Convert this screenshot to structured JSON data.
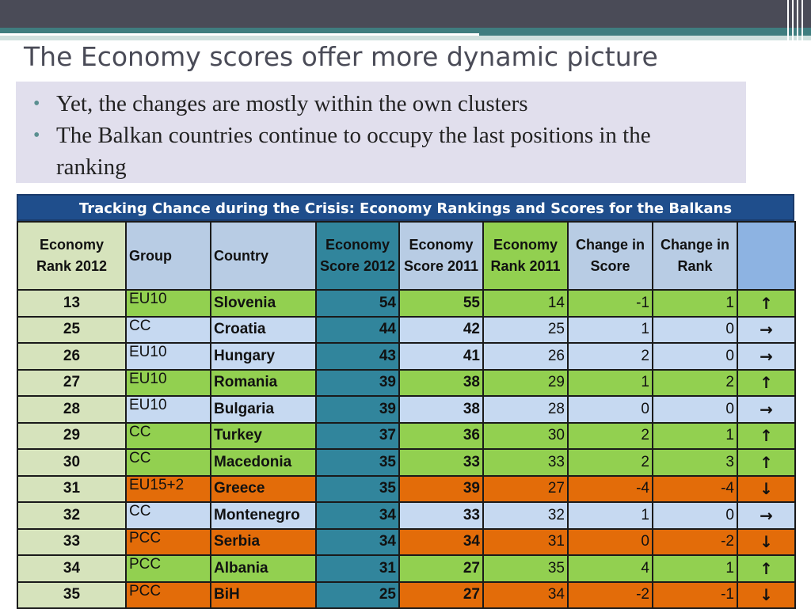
{
  "slide": {
    "title": "The Economy scores offer more dynamic picture",
    "bullets": [
      "Yet, the changes are mostly within the own clusters",
      "The Balkan countries continue to occupy the last positions in the ranking"
    ],
    "bullet_symbol": "•"
  },
  "table": {
    "title": "Tracking Chance during the Crisis: Economy Rankings and Scores for the Balkans",
    "headers": [
      "Economy Rank 2012",
      "Group",
      "Country",
      "Economy Score 2012",
      "Economy Score 2011",
      "Economy Rank 2011",
      "Change in Score",
      "Change in Rank",
      ""
    ],
    "rows": [
      {
        "rank2012": "13",
        "group": "EU10",
        "country": "Slovenia",
        "score2012": "54",
        "score2011": "55",
        "rank2011": "14",
        "change_score": "-1",
        "change_rank": "1",
        "trend": "up",
        "color": "green"
      },
      {
        "rank2012": "25",
        "group": "CC",
        "country": "Croatia",
        "score2012": "44",
        "score2011": "42",
        "rank2011": "25",
        "change_score": "1",
        "change_rank": "0",
        "trend": "flat",
        "color": "blue"
      },
      {
        "rank2012": "26",
        "group": "EU10",
        "country": "Hungary",
        "score2012": "43",
        "score2011": "41",
        "rank2011": "26",
        "change_score": "2",
        "change_rank": "0",
        "trend": "flat",
        "color": "blue"
      },
      {
        "rank2012": "27",
        "group": "EU10",
        "country": "Romania",
        "score2012": "39",
        "score2011": "38",
        "rank2011": "29",
        "change_score": "1",
        "change_rank": "2",
        "trend": "up",
        "color": "green"
      },
      {
        "rank2012": "28",
        "group": "EU10",
        "country": "Bulgaria",
        "score2012": "39",
        "score2011": "38",
        "rank2011": "28",
        "change_score": "0",
        "change_rank": "0",
        "trend": "flat",
        "color": "blue"
      },
      {
        "rank2012": "29",
        "group": "CC",
        "country": "Turkey",
        "score2012": "37",
        "score2011": "36",
        "rank2011": "30",
        "change_score": "2",
        "change_rank": "1",
        "trend": "up",
        "color": "green"
      },
      {
        "rank2012": "30",
        "group": "CC",
        "country": "Macedonia",
        "score2012": "35",
        "score2011": "33",
        "rank2011": "33",
        "change_score": "2",
        "change_rank": "3",
        "trend": "up",
        "color": "green"
      },
      {
        "rank2012": "31",
        "group": "EU15+2",
        "country": "Greece",
        "score2012": "35",
        "score2011": "39",
        "rank2011": "27",
        "change_score": "-4",
        "change_rank": "-4",
        "trend": "down",
        "color": "orange"
      },
      {
        "rank2012": "32",
        "group": "CC",
        "country": "Montenegro",
        "score2012": "34",
        "score2011": "33",
        "rank2011": "32",
        "change_score": "1",
        "change_rank": "0",
        "trend": "flat",
        "color": "blue"
      },
      {
        "rank2012": "33",
        "group": "PCC",
        "country": "Serbia",
        "score2012": "34",
        "score2011": "34",
        "rank2011": "31",
        "change_score": "0",
        "change_rank": "-2",
        "trend": "down",
        "color": "orange"
      },
      {
        "rank2012": "34",
        "group": "PCC",
        "country": "Albania",
        "score2012": "31",
        "score2011": "27",
        "rank2011": "35",
        "change_score": "4",
        "change_rank": "1",
        "trend": "up",
        "color": "green"
      },
      {
        "rank2012": "35",
        "group": "PCC",
        "country": "BiH",
        "score2012": "25",
        "score2011": "27",
        "rank2011": "34",
        "change_score": "-2",
        "change_rank": "-1",
        "trend": "down",
        "color": "orange"
      }
    ],
    "arrow_glyphs": {
      "up": "↑",
      "flat": "→",
      "down": "↓"
    },
    "colors": {
      "green": "#92d050",
      "blue": "#c6d9f1",
      "orange": "#e36c09",
      "teal": "#31859c",
      "title_bar": "#1f4e8c"
    }
  }
}
